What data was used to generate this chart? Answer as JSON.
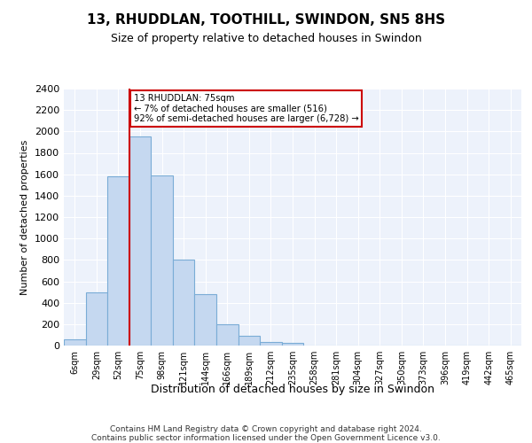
{
  "title": "13, RHUDDLAN, TOOTHILL, SWINDON, SN5 8HS",
  "subtitle": "Size of property relative to detached houses in Swindon",
  "xlabel": "Distribution of detached houses by size in Swindon",
  "ylabel": "Number of detached properties",
  "bar_color": "#c5d8f0",
  "bar_edge_color": "#7aacd6",
  "categories": [
    "6sqm",
    "29sqm",
    "52sqm",
    "75sqm",
    "98sqm",
    "121sqm",
    "144sqm",
    "166sqm",
    "189sqm",
    "212sqm",
    "235sqm",
    "258sqm",
    "281sqm",
    "304sqm",
    "327sqm",
    "350sqm",
    "373sqm",
    "396sqm",
    "419sqm",
    "442sqm",
    "465sqm"
  ],
  "values": [
    60,
    500,
    1580,
    1950,
    1590,
    800,
    480,
    200,
    90,
    35,
    28,
    0,
    0,
    0,
    0,
    0,
    0,
    0,
    0,
    0,
    0
  ],
  "ylim": [
    0,
    2400
  ],
  "yticks": [
    0,
    200,
    400,
    600,
    800,
    1000,
    1200,
    1400,
    1600,
    1800,
    2000,
    2200,
    2400
  ],
  "vline_index": 3,
  "vline_color": "#cc0000",
  "annotation_text": "13 RHUDDLAN: 75sqm\n← 7% of detached houses are smaller (516)\n92% of semi-detached houses are larger (6,728) →",
  "annotation_box_color": "#cc0000",
  "background_color": "#edf2fb",
  "footer_line1": "Contains HM Land Registry data © Crown copyright and database right 2024.",
  "footer_line2": "Contains public sector information licensed under the Open Government Licence v3.0."
}
